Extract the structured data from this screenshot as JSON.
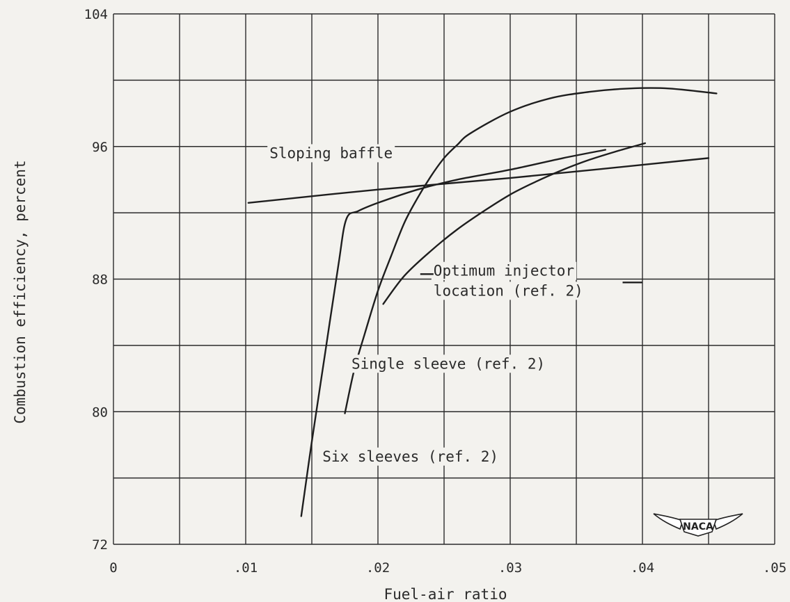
{
  "chart_data": {
    "type": "line",
    "xlabel": "Fuel-air ratio",
    "ylabel": "Combustion efficiency, percent",
    "xlim": [
      0,
      0.05
    ],
    "ylim": [
      72,
      104
    ],
    "x_ticks": [
      {
        "value": 0,
        "label": "0"
      },
      {
        "value": 0.01,
        "label": ".01"
      },
      {
        "value": 0.02,
        "label": ".02"
      },
      {
        "value": 0.03,
        "label": ".03"
      },
      {
        "value": 0.04,
        "label": ".04"
      },
      {
        "value": 0.05,
        "label": ".05"
      }
    ],
    "y_ticks": [
      {
        "value": 72,
        "label": "72"
      },
      {
        "value": 80,
        "label": "80"
      },
      {
        "value": 88,
        "label": "88"
      },
      {
        "value": 96,
        "label": "96"
      },
      {
        "value": 104,
        "label": "104"
      }
    ],
    "grid": true,
    "x_minor_step": 0.005,
    "y_minor_step": 4,
    "series": [
      {
        "name": "Sloping baffle",
        "x": [
          0.0102,
          0.02,
          0.03,
          0.045
        ],
        "y": [
          92.6,
          93.4,
          94.1,
          95.3
        ]
      },
      {
        "name": "Optimum injector location (ref. 2)",
        "x": [
          0.0204,
          0.022,
          0.024,
          0.026,
          0.028,
          0.03,
          0.032,
          0.034,
          0.036,
          0.038,
          0.0402
        ],
        "y": [
          86.5,
          88.2,
          89.7,
          91.0,
          92.1,
          93.1,
          93.9,
          94.6,
          95.2,
          95.7,
          96.2
        ]
      },
      {
        "name": "Single sleeve (ref. 2)",
        "x": [
          0.0175,
          0.0182,
          0.019,
          0.02,
          0.021,
          0.022,
          0.023,
          0.024,
          0.025,
          0.026,
          0.027,
          0.03,
          0.033,
          0.036,
          0.039,
          0.042,
          0.0456
        ],
        "y": [
          79.9,
          82.5,
          84.7,
          87.3,
          89.4,
          91.4,
          92.9,
          94.2,
          95.3,
          96.1,
          96.8,
          98.1,
          98.9,
          99.3,
          99.5,
          99.5,
          99.2
        ]
      },
      {
        "name": "Six sleeves (ref. 2)",
        "x": [
          0.0142,
          0.015,
          0.016,
          0.017,
          0.0176,
          0.0185,
          0.02,
          0.023,
          0.026,
          0.03,
          0.034,
          0.0372
        ],
        "y": [
          73.7,
          78.2,
          83.5,
          88.8,
          91.6,
          92.1,
          92.6,
          93.4,
          94.0,
          94.6,
          95.3,
          95.8
        ]
      }
    ],
    "annotations": [
      {
        "text": "Sloping baffle",
        "x": 0.0118,
        "y": 95.3
      },
      {
        "text": "Optimum injector",
        "x": 0.0242,
        "y": 88.2
      },
      {
        "text": "location (ref. 2)",
        "x": 0.0242,
        "y": 87.0
      },
      {
        "text": "Single sleeve (ref. 2)",
        "x": 0.018,
        "y": 82.6
      },
      {
        "text": "Six sleeves (ref. 2)",
        "x": 0.0158,
        "y": 77.0
      }
    ],
    "logo": "NACA"
  }
}
